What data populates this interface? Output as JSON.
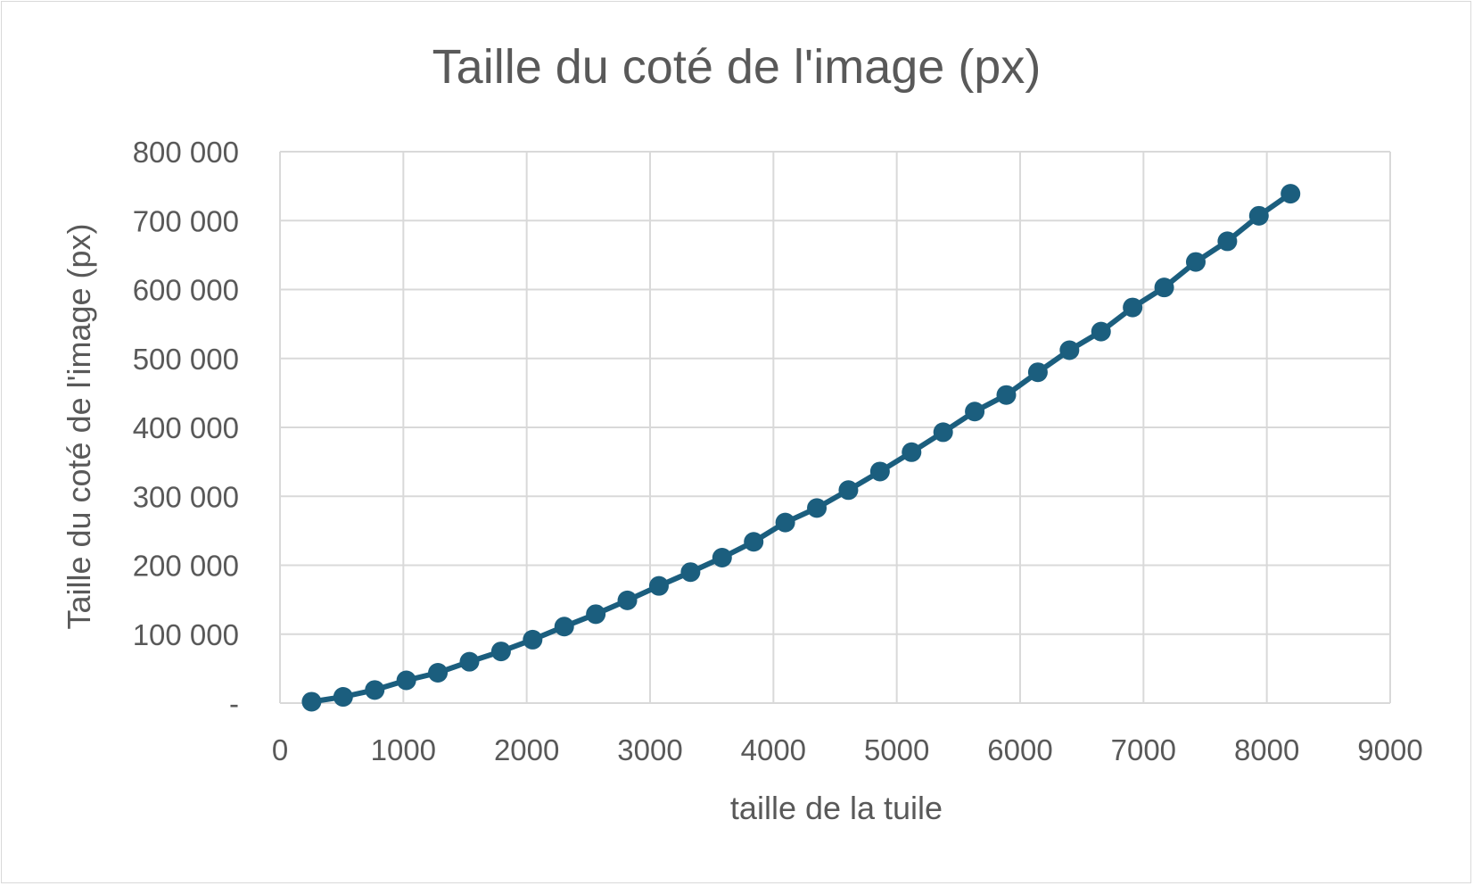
{
  "chart_data": {
    "type": "line",
    "title": "Taille du coté de l'image (px)",
    "xlabel": "taille de la tuile",
    "ylabel": "Taille du coté de l'image (px)",
    "xlim": [
      0,
      9000
    ],
    "ylim": [
      0,
      800000
    ],
    "x_ticks": [
      0,
      1000,
      2000,
      3000,
      4000,
      5000,
      6000,
      7000,
      8000,
      9000
    ],
    "x_tick_labels": [
      "0",
      "1000",
      "2000",
      "3000",
      "4000",
      "5000",
      "6000",
      "7000",
      "8000",
      "9000"
    ],
    "y_ticks": [
      0,
      100000,
      200000,
      300000,
      400000,
      500000,
      600000,
      700000,
      800000
    ],
    "y_tick_labels": [
      "-",
      "100 000",
      "200 000",
      "300 000",
      "400 000",
      "500 000",
      "600 000",
      "700 000",
      "800 000"
    ],
    "grid": true,
    "legend": "none",
    "series": [
      {
        "color": "#1b5e7e",
        "marker": "circle",
        "x": [
          256,
          512,
          768,
          1024,
          1280,
          1536,
          1792,
          2048,
          2304,
          2560,
          2816,
          3072,
          3328,
          3584,
          3840,
          4096,
          4352,
          4608,
          4864,
          5120,
          5376,
          5632,
          5888,
          6144,
          6400,
          6656,
          6912,
          7168,
          7424,
          7680,
          7936,
          8192
        ],
        "y": [
          2000,
          9000,
          19000,
          33000,
          44000,
          60000,
          75000,
          92000,
          111000,
          129000,
          149000,
          170000,
          190000,
          211000,
          234000,
          262000,
          283000,
          309000,
          336000,
          364000,
          393000,
          423000,
          447000,
          480000,
          512000,
          539000,
          574000,
          603000,
          640000,
          670000,
          707000,
          739000
        ]
      }
    ],
    "colors": {
      "line": "#1b5e7e",
      "grid": "#d9d9d9",
      "text": "#595959"
    }
  }
}
